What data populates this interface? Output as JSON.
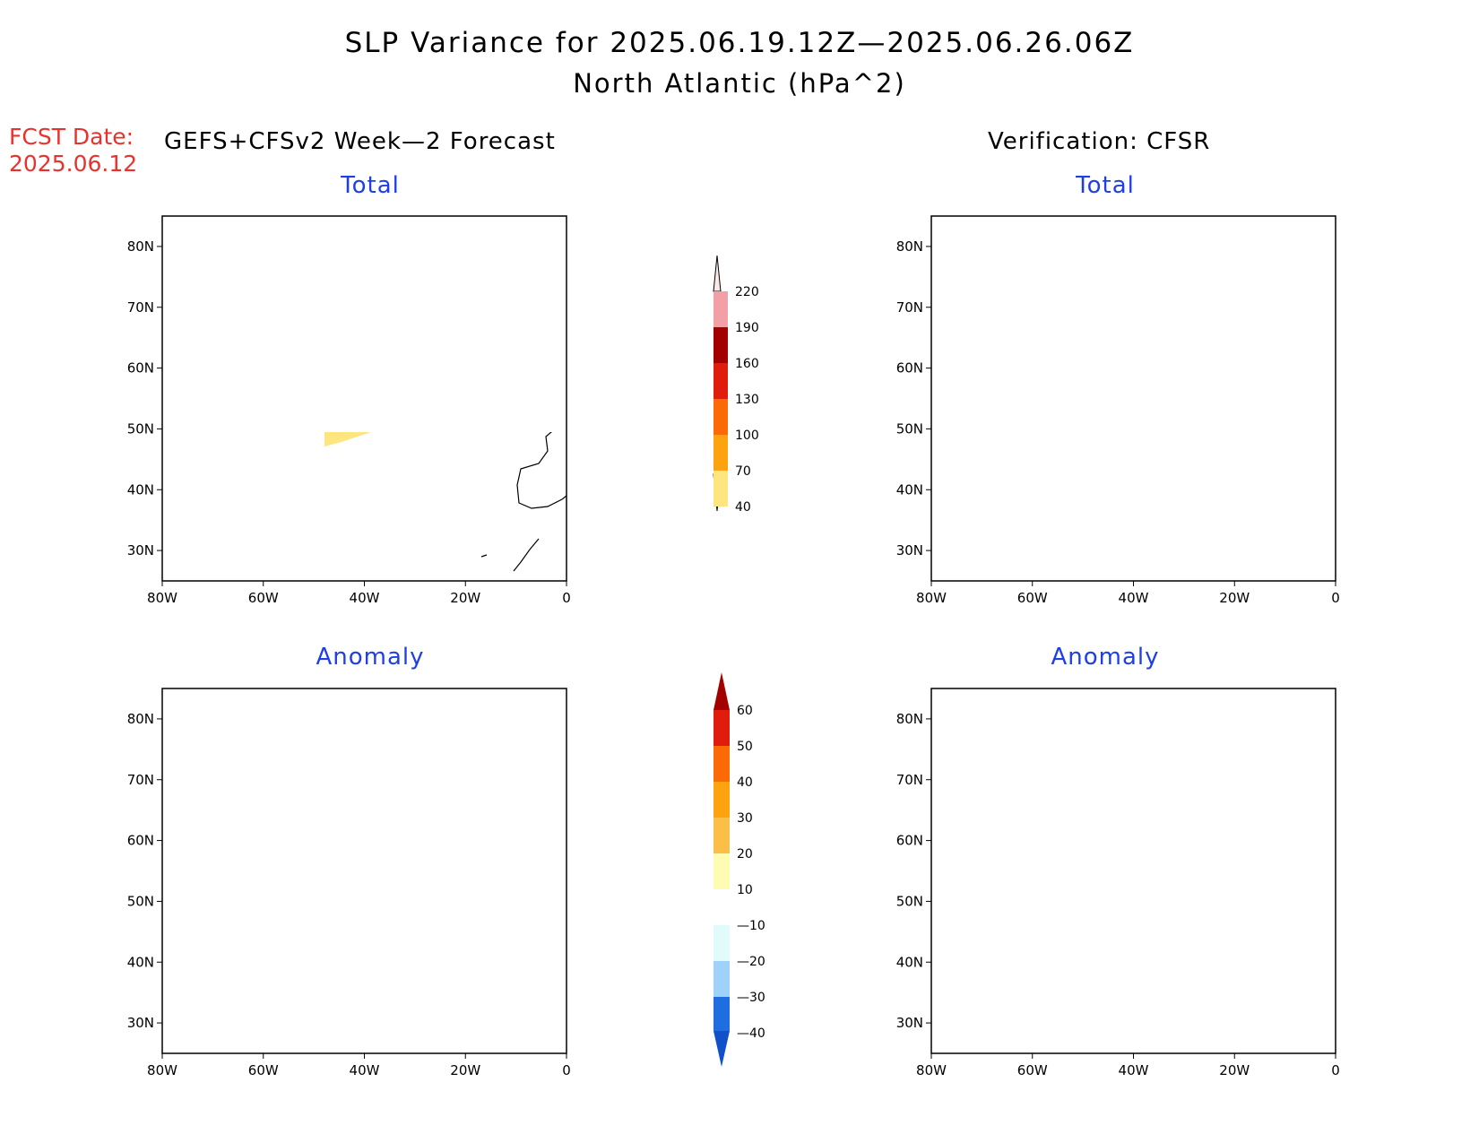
{
  "title": "SLP Variance for 2025.06.19.12Z—2025.06.26.06Z",
  "subtitle": "North Atlantic (hPa^2)",
  "fcst_label": "FCST Date:",
  "fcst_date": "2025.06.12",
  "left_column_title": "GEFS+CFSv2 Week—2 Forecast",
  "right_column_title": "Verification: CFSR",
  "panels": {
    "fc_total": {
      "title": "Total"
    },
    "fc_anom": {
      "title": "Anomaly"
    },
    "ver_total": {
      "title": "Total"
    },
    "ver_anom": {
      "title": "Anomaly"
    }
  },
  "axes": {
    "lat_labels": [
      "30N",
      "40N",
      "50N",
      "60N",
      "70N",
      "80N"
    ],
    "lon_labels": [
      "80W",
      "60W",
      "40W",
      "20W",
      "0"
    ],
    "lat_values": [
      30,
      40,
      50,
      60,
      70,
      80
    ],
    "lon_values": [
      -80,
      -60,
      -40,
      -20,
      0
    ],
    "lat_range": [
      25,
      85
    ],
    "lon_range": [
      -80,
      0
    ]
  },
  "colorbar_total": {
    "labels": [
      "40",
      "70",
      "100",
      "130",
      "160",
      "190",
      "220"
    ],
    "colors": [
      "#fde680",
      "#fca30f",
      "#fc6a06",
      "#e01c0c",
      "#a50000",
      "#f2a0a5",
      "#fde8e8"
    ]
  },
  "colorbar_anomaly": {
    "labels": [
      "60",
      "50",
      "40",
      "30",
      "20",
      "10",
      "—10",
      "—20",
      "—30",
      "—40"
    ],
    "colors": [
      "#a50000",
      "#e01c0c",
      "#fc6a06",
      "#fca30f",
      "#fbbf48",
      "#fefbb3",
      "#ffffff",
      "#e1fbfc",
      "#a0d2f9",
      "#5ea8f0",
      "#1e6ee0",
      "#1150c8"
    ]
  },
  "colors": {
    "yellow": "#fde680",
    "orange": "#fca30f",
    "dark_orange": "#fc6a06",
    "light_yellow": "#fefbb3",
    "light_orange": "#fbbf48",
    "dark_red": "#a50000",
    "red": "#e01c0c",
    "pale_cyan": "#e1fbfc",
    "light_blue": "#a0d2f9",
    "blue": "#5ea8f0",
    "mid_blue": "#1e6ee0"
  }
}
